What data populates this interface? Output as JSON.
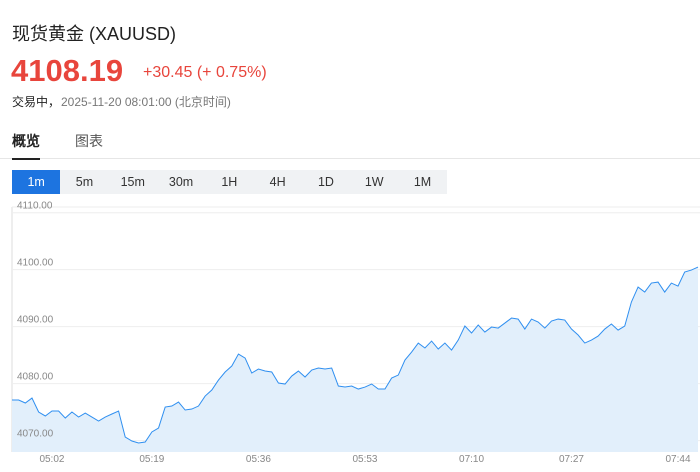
{
  "header": {
    "title": "现货黄金 (XAUUSD)",
    "price": "4108.19",
    "change": "+30.45 (+ 0.75%)",
    "status": "交易中，",
    "timestamp": "2025-11-20 08:01:00 (北京时间)"
  },
  "tabs": [
    "概览",
    "图表"
  ],
  "intervals": [
    "1m",
    "5m",
    "15m",
    "30m",
    "1H",
    "4H",
    "1D",
    "1W",
    "1M"
  ],
  "chart_data": {
    "type": "area",
    "color": "#2f8ff0",
    "fill": "#e2effb",
    "grid": true,
    "ylim": [
      4068,
      4111
    ],
    "yticks": [
      {
        "value": 4070,
        "label": "4070.00"
      },
      {
        "value": 4080,
        "label": "4080.00"
      },
      {
        "value": 4090,
        "label": "4090.00"
      },
      {
        "value": 4100,
        "label": "4100.00"
      },
      {
        "value": 4110,
        "label": "4110.00"
      }
    ],
    "categories": [
      null,
      null,
      null,
      null,
      null,
      null,
      "05:02",
      null,
      null,
      null,
      null,
      null,
      null,
      null,
      null,
      null,
      null,
      null,
      null,
      null,
      null,
      "05:19",
      null,
      null,
      null,
      null,
      null,
      null,
      null,
      null,
      null,
      null,
      null,
      null,
      null,
      null,
      null,
      "05:36",
      null,
      null,
      null,
      null,
      null,
      null,
      null,
      null,
      null,
      null,
      null,
      null,
      null,
      null,
      null,
      "05:53",
      null,
      null,
      null,
      null,
      null,
      null,
      null,
      null,
      null,
      null,
      null,
      null,
      null,
      null,
      null,
      "07:10",
      null,
      null,
      null,
      null,
      null,
      null,
      null,
      null,
      null,
      null,
      null,
      null,
      null,
      null,
      "07:27",
      null,
      null,
      null,
      null,
      null,
      null,
      null,
      null,
      null,
      null,
      null,
      null,
      null,
      null,
      null,
      "07:44",
      null,
      null,
      null
    ],
    "values": [
      4077.12,
      4077.12,
      4076.6,
      4077.47,
      4075.02,
      4074.32,
      4075.19,
      4075.19,
      4073.96,
      4075.02,
      4074.14,
      4074.84,
      4074.14,
      4073.44,
      4074.14,
      4074.67,
      4075.19,
      4070.63,
      4069.93,
      4069.58,
      4069.75,
      4071.51,
      4072.21,
      4075.89,
      4076.07,
      4076.77,
      4075.37,
      4075.54,
      4076.07,
      4077.82,
      4078.88,
      4080.63,
      4082.04,
      4083.09,
      4085.19,
      4084.49,
      4081.86,
      4082.56,
      4082.21,
      4082.04,
      4080.11,
      4079.93,
      4081.33,
      4082.21,
      4081.16,
      4082.39,
      4082.74,
      4082.56,
      4082.74,
      4079.58,
      4079.4,
      4079.58,
      4079.05,
      4079.4,
      4079.93,
      4079.05,
      4079.05,
      4080.98,
      4081.51,
      4084.14,
      4085.54,
      4087.12,
      4086.25,
      4087.47,
      4086.07,
      4087.12,
      4085.89,
      4087.65,
      4090.11,
      4088.88,
      4090.28,
      4089.05,
      4089.93,
      4089.75,
      4090.63,
      4091.51,
      4091.33,
      4089.58,
      4091.33,
      4090.81,
      4089.75,
      4090.98,
      4091.33,
      4091.16,
      4089.58,
      4088.53,
      4087.12,
      4087.65,
      4088.35,
      4089.58,
      4090.46,
      4089.4,
      4090.11,
      4094.32,
      4096.95,
      4096.07,
      4097.65,
      4097.82,
      4096.07,
      4097.65,
      4097.12,
      4099.58,
      4099.93,
      4100.46
    ]
  }
}
